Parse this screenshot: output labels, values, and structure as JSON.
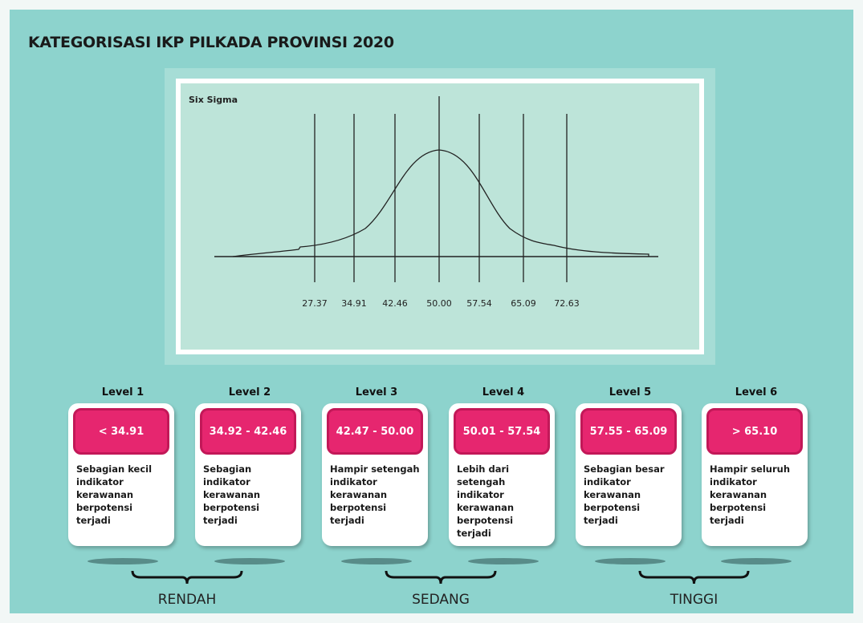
{
  "title": "KATEGORISASI IKP PILKADA PROVINSI 2020",
  "panel": {
    "label": "Six Sigma",
    "ticks": [
      "27.37",
      "34.91",
      "42.46",
      "50.00",
      "57.54",
      "65.09",
      "72.63"
    ]
  },
  "levels": [
    {
      "name": "Level 1",
      "range": "< 34.91",
      "description": "Sebagian kecil indikator kerawanan berpotensi terjadi"
    },
    {
      "name": "Level 2",
      "range": "34.92 - 42.46",
      "description": "Sebagian indikator kerawanan berpotensi terjadi"
    },
    {
      "name": "Level 3",
      "range": "42.47 - 50.00",
      "description": "Hampir setengah indikator kerawanan berpotensi terjadi"
    },
    {
      "name": "Level 4",
      "range": "50.01 - 57.54",
      "description": "Lebih dari setengah indikator kerawanan berpotensi terjadi"
    },
    {
      "name": "Level 5",
      "range": "57.55 - 65.09",
      "description": "Sebagian besar indikator kerawanan berpotensi terjadi"
    },
    {
      "name": "Level 6",
      "range": "> 65.10",
      "description": "Hampir seluruh indikator kerawanan berpotensi terjadi"
    }
  ],
  "groups": [
    "RENDAH",
    "SEDANG",
    "TINGGI"
  ]
}
